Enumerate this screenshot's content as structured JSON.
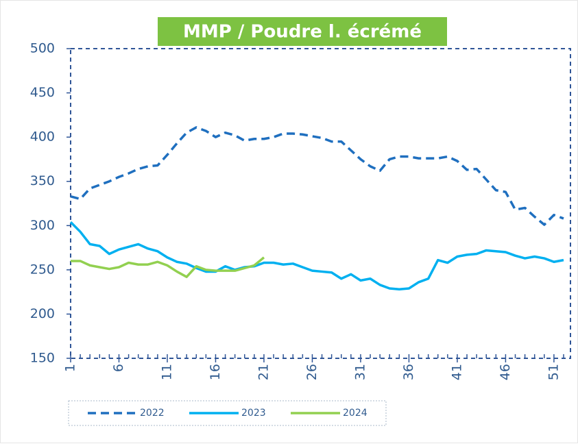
{
  "chart_data": {
    "type": "line",
    "title": "MMP / Poudre l. écrémé",
    "x": [
      1,
      2,
      3,
      4,
      5,
      6,
      7,
      8,
      9,
      10,
      11,
      12,
      13,
      14,
      15,
      16,
      17,
      18,
      19,
      20,
      21,
      22,
      23,
      24,
      25,
      26,
      27,
      28,
      29,
      30,
      31,
      32,
      33,
      34,
      35,
      36,
      37,
      38,
      39,
      40,
      41,
      42,
      43,
      44,
      45,
      46,
      47,
      48,
      49,
      50,
      51,
      52
    ],
    "series": [
      {
        "name": "2022",
        "color": "#1f6fbf",
        "dashed": true,
        "values": [
          333,
          330,
          342,
          346,
          350,
          355,
          359,
          364,
          367,
          368,
          380,
          393,
          405,
          411,
          407,
          400,
          405,
          402,
          396,
          398,
          398,
          400,
          404,
          404,
          403,
          401,
          399,
          395,
          395,
          385,
          375,
          367,
          362,
          375,
          378,
          378,
          376,
          376,
          376,
          378,
          373,
          363,
          364,
          352,
          340,
          338,
          318,
          320,
          310,
          301,
          312,
          308
        ]
      },
      {
        "name": "2023",
        "color": "#00b0f0",
        "dashed": false,
        "values": [
          304,
          293,
          279,
          277,
          268,
          273,
          276,
          279,
          274,
          271,
          264,
          259,
          257,
          252,
          248,
          248,
          254,
          250,
          253,
          254,
          258,
          258,
          256,
          257,
          253,
          249,
          248,
          247,
          240,
          245,
          238,
          240,
          233,
          229,
          228,
          229,
          236,
          240,
          261,
          258,
          265,
          267,
          268,
          272,
          271,
          270,
          266,
          263,
          265,
          263,
          259,
          261
        ]
      },
      {
        "name": "2024",
        "color": "#92d050",
        "dashed": false,
        "values": [
          260,
          260,
          255,
          253,
          251,
          253,
          258,
          256,
          256,
          259,
          255,
          248,
          242,
          254,
          250,
          249,
          249,
          249,
          252,
          255,
          264,
          null,
          null,
          null,
          null,
          null,
          null,
          null,
          null,
          null,
          null,
          null,
          null,
          null,
          null,
          null,
          null,
          null,
          null,
          null,
          null,
          null,
          null,
          null,
          null,
          null,
          null,
          null,
          null,
          null,
          null,
          null
        ]
      }
    ],
    "xlim": [
      1,
      52
    ],
    "xticks": [
      1,
      6,
      11,
      16,
      21,
      26,
      31,
      36,
      41,
      46,
      51
    ],
    "ylim": [
      150,
      500
    ],
    "yticks": [
      150,
      200,
      250,
      300,
      350,
      400,
      450,
      500
    ]
  }
}
